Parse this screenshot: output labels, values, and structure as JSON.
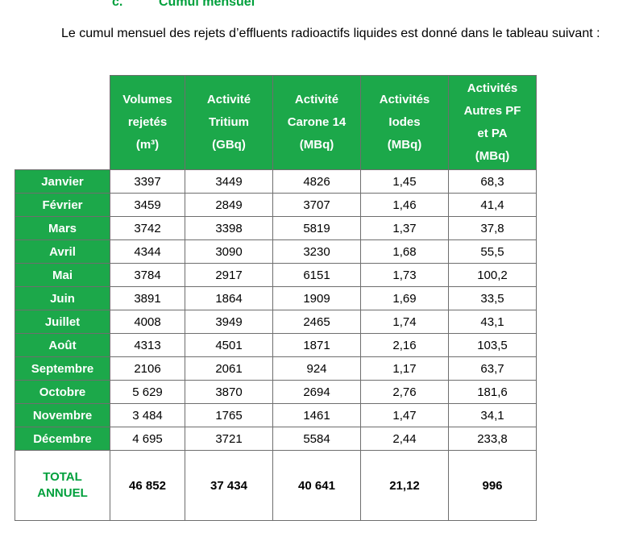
{
  "heading": {
    "letter": "c.",
    "title": "Cumul mensuel"
  },
  "intro": "Le cumul mensuel des rejets d’effluents radioactifs liquides est donné dans le tableau suivant :",
  "table": {
    "columns": [
      {
        "lines": [
          "Volumes",
          "rejetés",
          "(m³)"
        ]
      },
      {
        "lines": [
          "Activité",
          "Tritium",
          "(GBq)"
        ]
      },
      {
        "lines": [
          "Activité",
          "Carone 14",
          "(MBq)"
        ]
      },
      {
        "lines": [
          "Activités",
          "Iodes",
          "(MBq)"
        ]
      },
      {
        "lines": [
          "Activités",
          "Autres PF",
          "et PA",
          "(MBq)"
        ]
      }
    ],
    "rows": [
      {
        "month": "Janvier",
        "values": [
          "3397",
          "3449",
          "4826",
          "1,45",
          "68,3"
        ]
      },
      {
        "month": "Février",
        "values": [
          "3459",
          "2849",
          "3707",
          "1,46",
          "41,4"
        ]
      },
      {
        "month": "Mars",
        "values": [
          "3742",
          "3398",
          "5819",
          "1,37",
          "37,8"
        ]
      },
      {
        "month": "Avril",
        "values": [
          "4344",
          "3090",
          "3230",
          "1,68",
          "55,5"
        ]
      },
      {
        "month": "Mai",
        "values": [
          "3784",
          "2917",
          "6151",
          "1,73",
          "100,2"
        ]
      },
      {
        "month": "Juin",
        "values": [
          "3891",
          "1864",
          "1909",
          "1,69",
          "33,5"
        ]
      },
      {
        "month": "Juillet",
        "values": [
          "4008",
          "3949",
          "2465",
          "1,74",
          "43,1"
        ]
      },
      {
        "month": "Août",
        "values": [
          "4313",
          "4501",
          "1871",
          "2,16",
          "103,5"
        ]
      },
      {
        "month": "Septembre",
        "values": [
          "2106",
          "2061",
          "924",
          "1,17",
          "63,7"
        ]
      },
      {
        "month": "Octobre",
        "values": [
          "5 629",
          "3870",
          "2694",
          "2,76",
          "181,6"
        ]
      },
      {
        "month": "Novembre",
        "values": [
          "3 484",
          "1765",
          "1461",
          "1,47",
          "34,1"
        ]
      },
      {
        "month": "Décembre",
        "values": [
          "4 695",
          "3721",
          "5584",
          "2,44",
          "233,8"
        ]
      }
    ],
    "total": {
      "label_lines": [
        "TOTAL",
        "ANNUEL"
      ],
      "values": [
        "46 852",
        "37 434",
        "40 641",
        "21,12",
        "996"
      ]
    }
  },
  "colors": {
    "header_green": "#1ca84a",
    "text_green": "#00a03c",
    "border": "#6e6e6e"
  }
}
